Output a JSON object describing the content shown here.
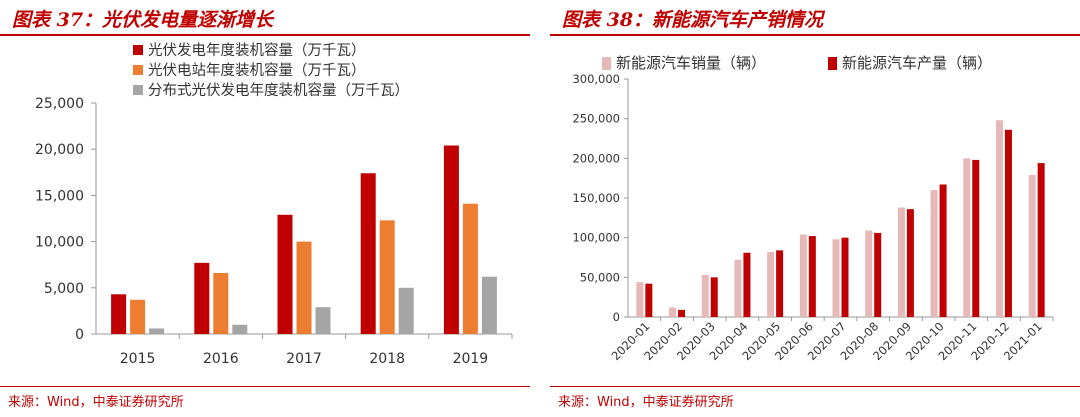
{
  "left_panel": {
    "title": "图表 37：光伏发电量逐渐增长",
    "source": "来源：Wind，中泰证券研究所"
  },
  "right_panel": {
    "title": "图表 38：新能源汽车产销情况",
    "source": "来源：Wind，中泰证券研究所"
  },
  "chart_data": [
    {
      "type": "bar",
      "title": "",
      "xlabel": "",
      "ylabel": "",
      "categories": [
        "2015",
        "2016",
        "2017",
        "2018",
        "2019"
      ],
      "ylim": [
        0,
        25000
      ],
      "yticks": [
        0,
        5000,
        10000,
        15000,
        20000,
        25000
      ],
      "ytick_labels": [
        "0",
        "5,000",
        "10,000",
        "15,000",
        "20,000",
        "25,000"
      ],
      "grid": false,
      "legend_position": "top-left",
      "series": [
        {
          "name": "光伏发电年度装机容量（万千瓦）",
          "color": "#c00000",
          "values": [
            4300,
            7700,
            12900,
            17400,
            20400
          ]
        },
        {
          "name": "光伏电站年度装机容量（万千瓦）",
          "color": "#ed7d31",
          "values": [
            3700,
            6600,
            10000,
            12300,
            14100
          ]
        },
        {
          "name": "分布式光伏发电年度装机容量（万千瓦）",
          "color": "#a5a5a5",
          "values": [
            600,
            1000,
            2900,
            5000,
            6200
          ]
        }
      ]
    },
    {
      "type": "bar",
      "title": "",
      "xlabel": "",
      "ylabel": "",
      "categories": [
        "2020-01",
        "2020-02",
        "2020-03",
        "2020-04",
        "2020-05",
        "2020-06",
        "2020-07",
        "2020-08",
        "2020-09",
        "2020-10",
        "2020-11",
        "2020-12",
        "2021-01"
      ],
      "ylim": [
        0,
        300000
      ],
      "yticks": [
        0,
        50000,
        100000,
        150000,
        200000,
        250000,
        300000
      ],
      "ytick_labels": [
        "0",
        "50,000",
        "100,000",
        "150,000",
        "200,000",
        "250,000",
        "300,000"
      ],
      "grid": false,
      "legend_position": "top",
      "series": [
        {
          "name": "新能源汽车销量（辆）",
          "color": "#e6b8b7",
          "values": [
            44000,
            12000,
            53000,
            72000,
            82000,
            104000,
            98000,
            109000,
            138000,
            160000,
            200000,
            248000,
            179000
          ]
        },
        {
          "name": "新能源汽车产量（辆）",
          "color": "#c00000",
          "values": [
            42000,
            9000,
            50000,
            81000,
            84000,
            102000,
            100000,
            106000,
            136000,
            167000,
            198000,
            236000,
            194000
          ]
        }
      ]
    }
  ]
}
